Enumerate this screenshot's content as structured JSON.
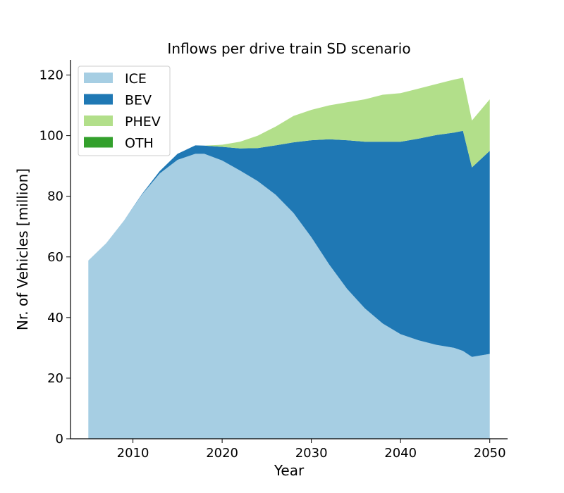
{
  "chart_data": {
    "type": "area",
    "stacked": true,
    "title": "Inflows per drive train SD scenario",
    "xlabel": "Year",
    "ylabel": "Nr. of Vehicles [million]",
    "xlim": [
      2003,
      2052
    ],
    "ylim": [
      0,
      125
    ],
    "xticks": [
      2010,
      2020,
      2030,
      2040,
      2050
    ],
    "yticks": [
      0,
      20,
      40,
      60,
      80,
      100,
      120
    ],
    "grid": false,
    "legend_position": "top-left",
    "x": [
      2005,
      2007,
      2009,
      2011,
      2013,
      2015,
      2017,
      2018,
      2020,
      2022,
      2024,
      2026,
      2028,
      2030,
      2032,
      2034,
      2036,
      2038,
      2040,
      2042,
      2044,
      2046,
      2047,
      2048,
      2050
    ],
    "series": [
      {
        "name": "ICE",
        "color": "#a6cee3",
        "values": [
          58.8,
          64.5,
          72.0,
          80.5,
          87.5,
          92.0,
          94.0,
          94.0,
          91.8,
          88.5,
          85.0,
          80.5,
          74.5,
          66.5,
          57.5,
          49.5,
          43.0,
          38.0,
          34.5,
          32.5,
          31.0,
          30.0,
          29.0,
          27.0,
          28.0
        ]
      },
      {
        "name": "BEV",
        "color": "#1f78b4",
        "values": [
          0.0,
          0.0,
          0.0,
          0.2,
          0.8,
          2.0,
          2.8,
          2.7,
          4.5,
          7.3,
          10.9,
          16.3,
          23.3,
          32.0,
          41.3,
          49.0,
          55.0,
          60.0,
          63.5,
          66.5,
          69.2,
          71.0,
          72.6,
          62.5,
          67.0
        ]
      },
      {
        "name": "PHEV",
        "color": "#b2df8a",
        "values": [
          0.0,
          0.0,
          0.0,
          0.0,
          0.0,
          0.0,
          0.0,
          0.0,
          0.7,
          2.2,
          4.1,
          6.2,
          8.7,
          10.0,
          11.2,
          12.5,
          14.0,
          15.5,
          16.0,
          16.5,
          16.8,
          17.5,
          17.5,
          15.5,
          17.0
        ]
      },
      {
        "name": "OTH",
        "color": "#33a02c",
        "values": [
          0.0,
          0.0,
          0.0,
          0.0,
          0.0,
          0.0,
          0.0,
          0.0,
          0.0,
          0.0,
          0.0,
          0.0,
          0.0,
          0.0,
          0.0,
          0.0,
          0.0,
          0.0,
          0.0,
          0.0,
          0.0,
          0.0,
          0.0,
          0.0,
          0.0
        ]
      }
    ]
  }
}
